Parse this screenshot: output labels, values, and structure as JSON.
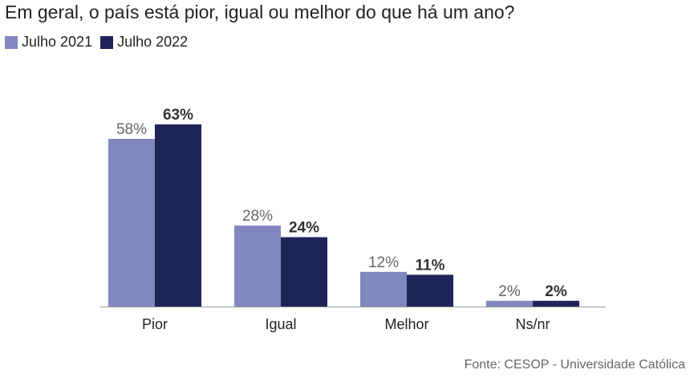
{
  "colors": {
    "series_2021": "#8088bd",
    "series_2022": "#1f2458",
    "axis": "#999999"
  },
  "chart_data": {
    "type": "bar",
    "title": "Em geral, o país está pior, igual ou melhor do que há um ano?",
    "categories": [
      "Pior",
      "Igual",
      "Melhor",
      "Ns/nr"
    ],
    "series": [
      {
        "name": "Julho 2021",
        "values": [
          58,
          28,
          12,
          2
        ],
        "labels": [
          "58%",
          "28%",
          "12%",
          "2%"
        ]
      },
      {
        "name": "Julho 2022",
        "values": [
          63,
          24,
          11,
          2
        ],
        "labels": [
          "63%",
          "24%",
          "11%",
          "2%"
        ]
      }
    ],
    "xlabel": "",
    "ylabel": "",
    "ylim": [
      0,
      63
    ],
    "unit": "%",
    "legend": "top-left",
    "grid": false
  },
  "source": "Fonte: CESOP - Universidade Católica"
}
